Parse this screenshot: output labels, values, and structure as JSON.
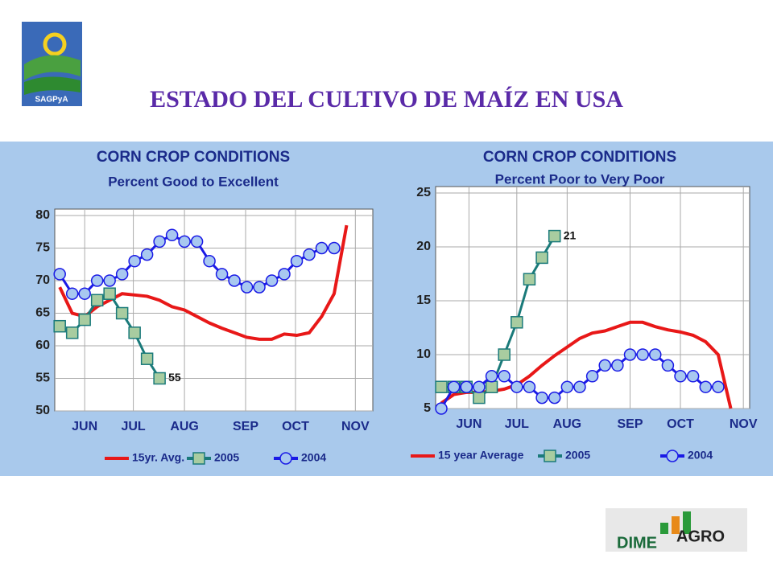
{
  "slide_title": "ESTADO DEL CULTIVO DE MAÍZ EN USA",
  "logos": {
    "left": "SAGPyA",
    "right_1": "DIME",
    "right_2": "AGRO"
  },
  "chart_data": [
    {
      "type": "line",
      "title": "CORN CROP CONDITIONS",
      "subtitle": "Percent Good to Excellent",
      "x": [
        0,
        1,
        2,
        3,
        4,
        5,
        6,
        7,
        8,
        9,
        10,
        11,
        12,
        13,
        14,
        15,
        16,
        17,
        18,
        19,
        20,
        21,
        22,
        23
      ],
      "xlim": [
        -0.4,
        25.1
      ],
      "xticks": [
        {
          "value": 2,
          "label": "JUN"
        },
        {
          "value": 5.9,
          "label": "JUL"
        },
        {
          "value": 10,
          "label": "AUG"
        },
        {
          "value": 14.9,
          "label": "SEP"
        },
        {
          "value": 18.9,
          "label": "OCT"
        },
        {
          "value": 23.7,
          "label": "NOV"
        }
      ],
      "ylim": [
        50,
        80
      ],
      "yticks": [
        50,
        55,
        60,
        65,
        70,
        75,
        80
      ],
      "grid": true,
      "annotation": "55",
      "series": [
        {
          "name": "15yr. Avg.",
          "color": "#e81818",
          "marker": "none",
          "values": [
            69,
            65,
            64.5,
            66,
            67,
            68,
            67.8,
            67.6,
            67,
            66,
            65.5,
            64.5,
            63.5,
            62.7,
            62,
            61.3,
            61,
            61,
            61.8,
            61.6,
            62,
            64.5,
            68,
            78.5
          ]
        },
        {
          "name": "2005",
          "color": "#1a7a7a",
          "marker": "square",
          "values": [
            63,
            62,
            64,
            67,
            68,
            65,
            62,
            58,
            55,
            null,
            null,
            null,
            null,
            null,
            null,
            null,
            null,
            null,
            null,
            null,
            null,
            null,
            null,
            null
          ]
        },
        {
          "name": "2004",
          "color": "#1a1ae6",
          "marker": "circle",
          "values": [
            71,
            68,
            68,
            70,
            70,
            71,
            73,
            74,
            76,
            77,
            76,
            76,
            73,
            71,
            70,
            69,
            69,
            70,
            71,
            73,
            74,
            75,
            75,
            null
          ]
        }
      ]
    },
    {
      "type": "line",
      "title": "CORN CROP CONDITIONS",
      "subtitle": "Percent Poor to Very Poor",
      "x": [
        0,
        1,
        2,
        3,
        4,
        5,
        6,
        7,
        8,
        9,
        10,
        11,
        12,
        13,
        14,
        15,
        16,
        17,
        18,
        19,
        20,
        21,
        22,
        23
      ],
      "xlim": [
        -0.45,
        24.5
      ],
      "xticks": [
        {
          "value": 2.2,
          "label": "JUN"
        },
        {
          "value": 6,
          "label": "JUL"
        },
        {
          "value": 10,
          "label": "AUG"
        },
        {
          "value": 15,
          "label": "SEP"
        },
        {
          "value": 19,
          "label": "OCT"
        },
        {
          "value": 24,
          "label": "NOV"
        }
      ],
      "ylim": [
        5,
        25
      ],
      "yticks": [
        5,
        10,
        15,
        20,
        25
      ],
      "grid": true,
      "annotation": "21",
      "series": [
        {
          "name": "15 year Average",
          "color": "#e81818",
          "marker": "none",
          "values": [
            5.5,
            6.3,
            6.5,
            6.5,
            6.6,
            6.8,
            7.2,
            8,
            9,
            9.9,
            10.7,
            11.5,
            12,
            12.2,
            12.6,
            13,
            13,
            12.6,
            12.3,
            12.1,
            11.8,
            11.2,
            10,
            5
          ]
        },
        {
          "name": "2005",
          "color": "#1a7a7a",
          "marker": "square",
          "values": [
            7,
            7,
            7,
            6,
            7,
            10,
            13,
            17,
            19,
            21,
            null,
            null,
            null,
            null,
            null,
            null,
            null,
            null,
            null,
            null,
            null,
            null,
            null,
            null
          ]
        },
        {
          "name": "2004",
          "color": "#1a1ae6",
          "marker": "circle",
          "values": [
            5,
            7,
            7,
            7,
            8,
            8,
            7,
            7,
            6,
            6,
            7,
            7,
            8,
            9,
            9,
            10,
            10,
            10,
            9,
            8,
            8,
            7,
            7,
            null
          ]
        }
      ]
    }
  ]
}
